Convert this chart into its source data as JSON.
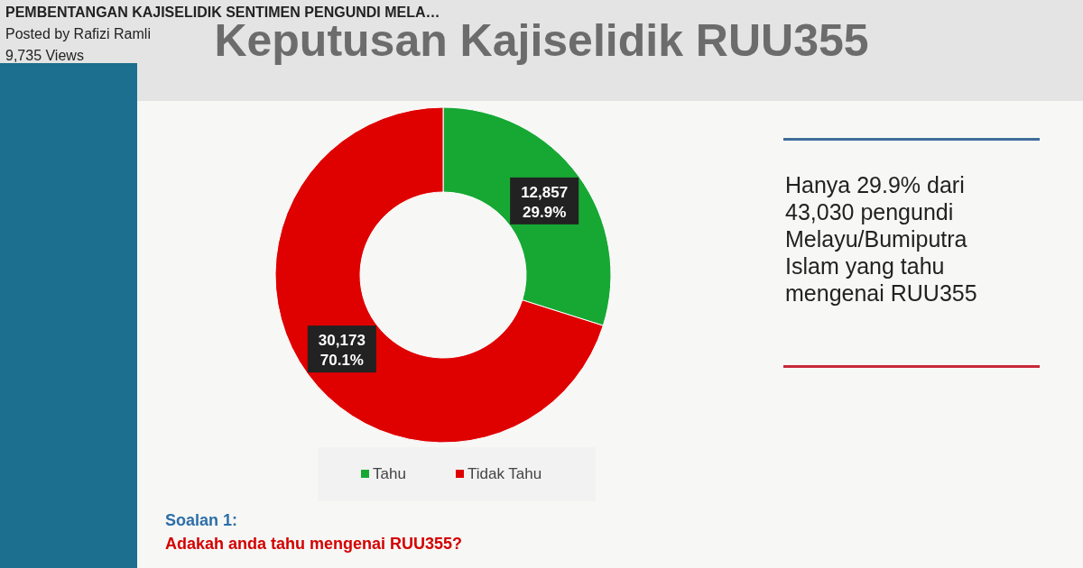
{
  "chart_data": {
    "type": "donut",
    "title": "Keputusan Kajiselidik RUU355",
    "categories": [
      "Tahu",
      "Tidak Tahu"
    ],
    "values": [
      12857,
      30173
    ],
    "colors": [
      "#17a834",
      "#df0000"
    ],
    "value_labels": [
      "12,857\n29.9%",
      "30,173\n70.1%"
    ],
    "legend": "bottom",
    "annotations": [
      "PEMBENTANGAN KAJISELIDIK SENTIMEN PENGUNDI MELA…",
      "Posted by Rafizi Ramli",
      "9,735 Views",
      "Hanya 29.9% dari\n43,030 pengundi\nMelayu/Bumiputra\nIslam yang tahu\nmengenai RUU355",
      "Soalan 1:",
      "Adakah anda tahu mengenai RUU355?"
    ]
  }
}
